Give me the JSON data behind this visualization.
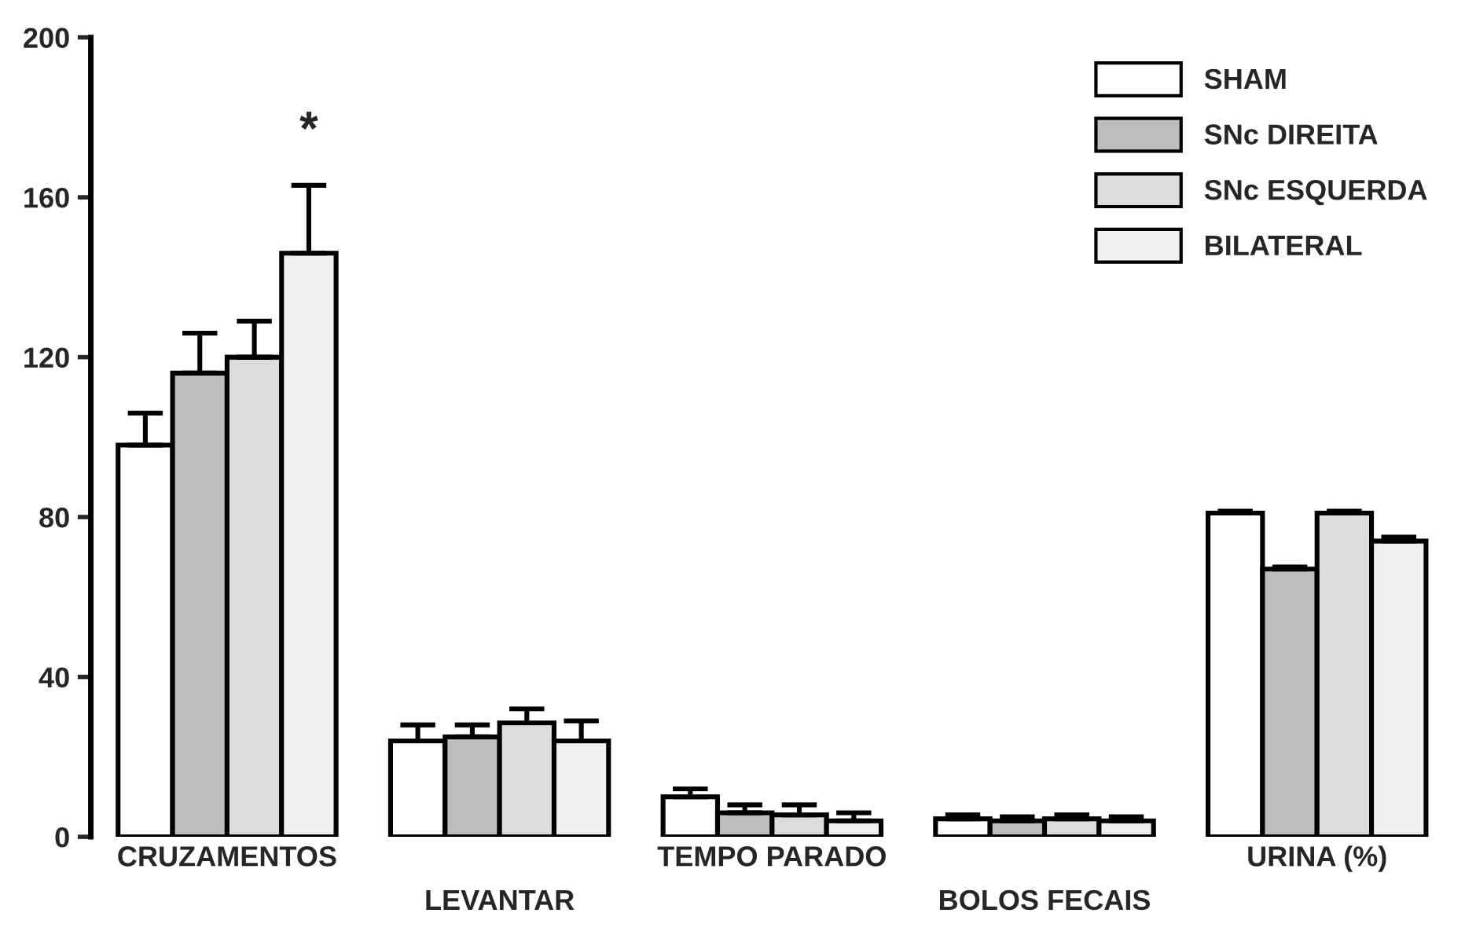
{
  "chart_data": {
    "type": "bar",
    "categories": [
      "CRUZAMENTOS",
      "LEVANTAR",
      "TEMPO PARADO",
      "BOLOS FECAIS",
      "URINA (%)"
    ],
    "series": [
      {
        "name": "SHAM",
        "color": "#ffffff",
        "values": [
          98,
          24,
          10,
          4.5,
          81
        ],
        "errors": [
          [
            98,
            106
          ],
          [
            24,
            28
          ],
          [
            10,
            12
          ],
          [
            4.5,
            5.5
          ],
          [
            81,
            81.5
          ]
        ]
      },
      {
        "name": "SNc DIREITA",
        "color": "#bdbdbd",
        "values": [
          116,
          25,
          6,
          4,
          67
        ],
        "errors": [
          [
            116,
            126
          ],
          [
            25,
            28
          ],
          [
            6,
            8
          ],
          [
            4,
            5
          ],
          [
            67,
            67.5
          ]
        ]
      },
      {
        "name": "SNc ESQUERDA",
        "color": "#dcdcdc",
        "values": [
          120,
          28.5,
          5.5,
          4.5,
          81
        ],
        "errors": [
          [
            120,
            129
          ],
          [
            28.5,
            32
          ],
          [
            5.5,
            8
          ],
          [
            4.5,
            5.5
          ],
          [
            81,
            81.5
          ]
        ]
      },
      {
        "name": "BILATERAL",
        "color": "#f0f0f0",
        "values": [
          146,
          24,
          4,
          4,
          74
        ],
        "errors": [
          [
            146,
            163
          ],
          [
            24,
            29
          ],
          [
            4,
            6
          ],
          [
            4,
            5
          ],
          [
            74,
            75
          ]
        ]
      }
    ],
    "ylim": [
      0,
      200
    ],
    "yticks": [
      0,
      40,
      80,
      120,
      160,
      200
    ],
    "annotations": [
      "*"
    ],
    "grid": false,
    "legend": "top right"
  }
}
